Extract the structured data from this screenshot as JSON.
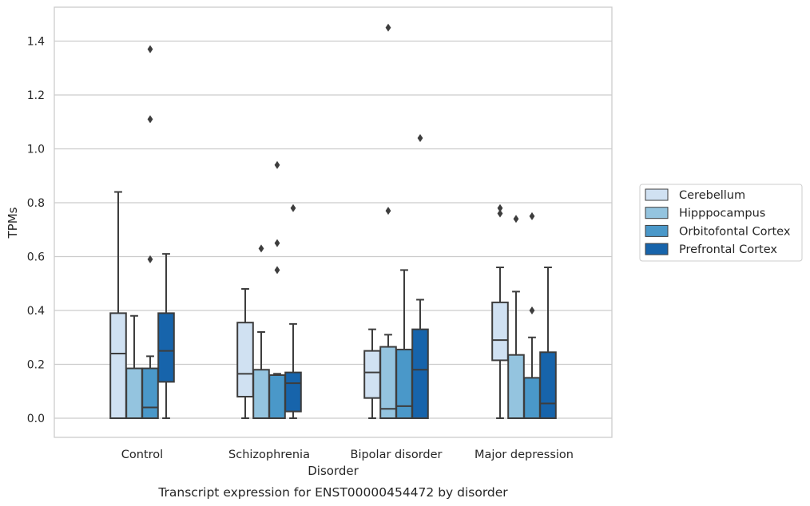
{
  "chart_data": {
    "type": "box",
    "title": "",
    "caption": "Transcript expression for ENST00000454472 by disorder",
    "xlabel": "Disorder",
    "ylabel": "TPMs",
    "ylim": [
      -0.07,
      1.53
    ],
    "yticks": [
      "0.0",
      "0.2",
      "0.4",
      "0.6",
      "0.8",
      "1.0",
      "1.2",
      "1.4"
    ],
    "grid": "horizontal",
    "legend_position": "right",
    "categories": [
      "Control",
      "Schizophrenia",
      "Bipolar disorder",
      "Major depression"
    ],
    "series": [
      {
        "name": "Cerebellum",
        "color": "#d0e1f2",
        "boxes": [
          {
            "whislo": 0.0,
            "q1": 0.0,
            "med": 0.24,
            "q3": 0.39,
            "whishi": 0.84,
            "fliers": []
          },
          {
            "whislo": 0.0,
            "q1": 0.08,
            "med": 0.165,
            "q3": 0.355,
            "whishi": 0.48,
            "fliers": []
          },
          {
            "whislo": 0.0,
            "q1": 0.075,
            "med": 0.17,
            "q3": 0.25,
            "whishi": 0.33,
            "fliers": []
          },
          {
            "whislo": 0.0,
            "q1": 0.215,
            "med": 0.29,
            "q3": 0.43,
            "whishi": 0.56,
            "fliers": [
              0.76,
              0.78
            ]
          }
        ]
      },
      {
        "name": "Hipppocampus",
        "color": "#94c4df",
        "boxes": [
          {
            "whislo": 0.0,
            "q1": 0.0,
            "med": 0.0,
            "q3": 0.185,
            "whishi": 0.38,
            "fliers": []
          },
          {
            "whislo": 0.0,
            "q1": 0.0,
            "med": 0.0,
            "q3": 0.18,
            "whishi": 0.32,
            "fliers": [
              0.63
            ]
          },
          {
            "whislo": 0.0,
            "q1": 0.0,
            "med": 0.035,
            "q3": 0.265,
            "whishi": 0.31,
            "fliers": [
              0.77,
              1.45
            ]
          },
          {
            "whislo": 0.0,
            "q1": 0.0,
            "med": 0.0,
            "q3": 0.235,
            "whishi": 0.47,
            "fliers": [
              0.74
            ]
          }
        ]
      },
      {
        "name": "Orbitofontal Cortex",
        "color": "#4a98c9",
        "boxes": [
          {
            "whislo": 0.0,
            "q1": 0.0,
            "med": 0.04,
            "q3": 0.185,
            "whishi": 0.23,
            "fliers": [
              0.59,
              1.11,
              1.37
            ]
          },
          {
            "whislo": 0.0,
            "q1": 0.0,
            "med": 0.0,
            "q3": 0.16,
            "whishi": 0.165,
            "fliers": [
              0.55,
              0.65,
              0.94
            ]
          },
          {
            "whislo": 0.0,
            "q1": 0.0,
            "med": 0.045,
            "q3": 0.255,
            "whishi": 0.55,
            "fliers": []
          },
          {
            "whislo": 0.0,
            "q1": 0.0,
            "med": 0.0,
            "q3": 0.15,
            "whishi": 0.3,
            "fliers": [
              0.4,
              0.75
            ]
          }
        ]
      },
      {
        "name": "Prefrontal Cortex",
        "color": "#1764ab",
        "boxes": [
          {
            "whislo": 0.0,
            "q1": 0.135,
            "med": 0.25,
            "q3": 0.39,
            "whishi": 0.61,
            "fliers": []
          },
          {
            "whislo": 0.0,
            "q1": 0.025,
            "med": 0.13,
            "q3": 0.17,
            "whishi": 0.35,
            "fliers": [
              0.78
            ]
          },
          {
            "whislo": 0.0,
            "q1": 0.0,
            "med": 0.18,
            "q3": 0.33,
            "whishi": 0.44,
            "fliers": [
              1.04
            ]
          },
          {
            "whislo": 0.0,
            "q1": 0.0,
            "med": 0.055,
            "q3": 0.245,
            "whishi": 0.56,
            "fliers": []
          }
        ]
      }
    ]
  }
}
